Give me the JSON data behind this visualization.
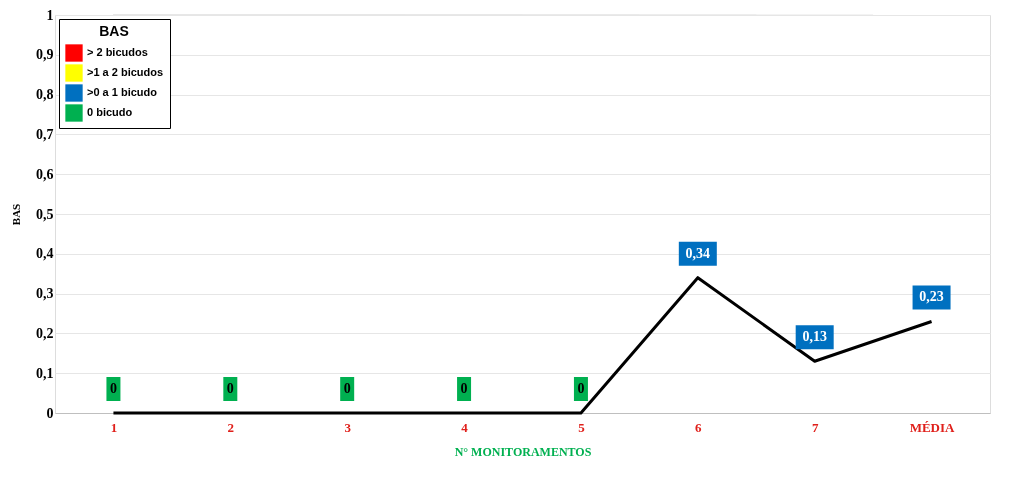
{
  "chart_data": {
    "type": "line",
    "xlabel": "N° MONITORAMENTOS",
    "ylabel": "BAS",
    "legend_title": "BAS",
    "legend": "top left",
    "grid": true,
    "marker": "none",
    "categories": [
      "1",
      "2",
      "3",
      "4",
      "5",
      "6",
      "7",
      "MÉDIA"
    ],
    "ylim": [
      0,
      1
    ],
    "yticks": [
      0,
      {
        "value": 0.1,
        "label": "0,1"
      },
      {
        "value": 0.2,
        "label": "0,2"
      },
      {
        "value": 0.3,
        "label": "0,3"
      },
      {
        "value": 0.4,
        "label": "0,4"
      },
      {
        "value": 0.5,
        "label": "0,5"
      },
      {
        "value": 0.6,
        "label": "0,6"
      },
      {
        "value": 0.7,
        "label": "0,7"
      },
      {
        "value": 0.8,
        "label": "0,8"
      },
      {
        "value": 0.9,
        "label": "0,9"
      },
      1
    ],
    "series": [
      {
        "color": "#000000",
        "values": [
          0,
          0,
          0,
          0,
          0,
          0.34,
          0.13,
          0.23
        ],
        "value_labels": [
          "0",
          "0",
          "0",
          "0",
          "0",
          "0,34",
          "0,13",
          "0,23"
        ],
        "colors": [
          "#00b050",
          "#00b050",
          "#00b050",
          "#00b050",
          "#00b050",
          "#0070c0",
          "#0070c0",
          "#0070c0"
        ]
      },
      {
        "name": "> 2 bicudos",
        "color": "#ff0000",
        "values": [
          null,
          null,
          null,
          null,
          null,
          null,
          null,
          null
        ]
      },
      {
        "name": ">1 a 2 bicudos",
        "color": "#ffff00",
        "values": [
          null,
          null,
          null,
          null,
          null,
          null,
          null,
          null
        ]
      },
      {
        "name": ">0 a 1 bicudo",
        "color": "#0070c0",
        "values": [
          null,
          null,
          null,
          null,
          null,
          null,
          null,
          null
        ]
      },
      {
        "name": "0 bicudo",
        "color": "#00b050",
        "values": [
          null,
          null,
          null,
          null,
          null,
          null,
          null,
          null
        ]
      }
    ]
  }
}
